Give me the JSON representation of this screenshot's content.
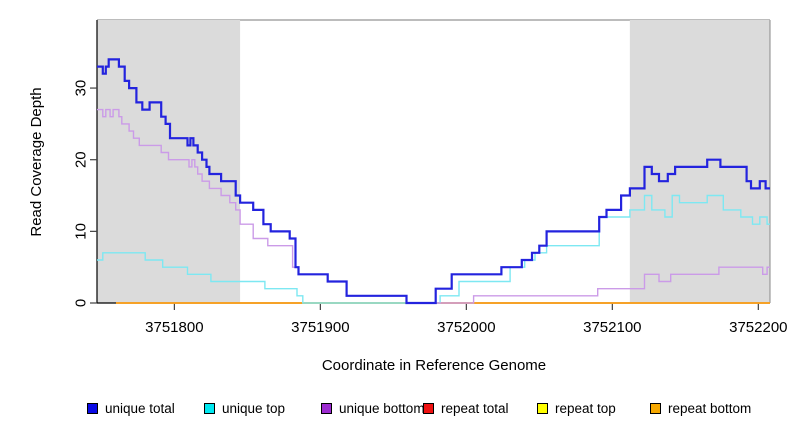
{
  "chart_data": {
    "type": "line",
    "subtype": "step",
    "title": "",
    "xlabel": "Coordinate in Reference Genome",
    "ylabel": "Read Coverage Depth",
    "x_domain": [
      3751747,
      3752208
    ],
    "y_domain": [
      0,
      39.5
    ],
    "x_ticks": [
      3751800,
      3751900,
      3752000,
      3752100,
      3752200
    ],
    "y_ticks": [
      0,
      10,
      20,
      30
    ],
    "grid": false,
    "legend_position": "bottom",
    "shaded_regions": [
      {
        "x0": 3751747,
        "x1": 3751845,
        "color": "#DBDBDB"
      },
      {
        "x0": 3752112,
        "x1": 3752208,
        "color": "#DBDBDB"
      }
    ],
    "x_end": 3752208,
    "draw_order": [
      3,
      4,
      5,
      1,
      2,
      0
    ],
    "series": [
      {
        "name": "unique total",
        "line_color": "#2323DE",
        "legend_color": "#0A0AE6",
        "line_width": 2.2,
        "steps": [
          [
            3751747,
            33
          ],
          [
            3751751,
            32
          ],
          [
            3751753,
            33
          ],
          [
            3751755,
            34
          ],
          [
            3751762,
            33
          ],
          [
            3751766,
            31
          ],
          [
            3751769,
            30
          ],
          [
            3751774,
            28
          ],
          [
            3751778,
            27
          ],
          [
            3751783,
            28
          ],
          [
            3751791,
            26
          ],
          [
            3751794,
            25
          ],
          [
            3751797,
            23
          ],
          [
            3751809,
            22
          ],
          [
            3751811,
            23
          ],
          [
            3751813,
            22
          ],
          [
            3751816,
            21
          ],
          [
            3751819,
            20
          ],
          [
            3751822,
            19
          ],
          [
            3751824,
            18
          ],
          [
            3751832,
            17
          ],
          [
            3751842,
            15
          ],
          [
            3751845,
            14
          ],
          [
            3751854,
            13
          ],
          [
            3751861,
            11
          ],
          [
            3751866,
            10
          ],
          [
            3751879,
            9
          ],
          [
            3751883,
            5
          ],
          [
            3751885,
            4
          ],
          [
            3751905,
            3
          ],
          [
            3751918,
            1
          ],
          [
            3751959,
            0
          ],
          [
            3751979,
            2
          ],
          [
            3751990,
            4
          ],
          [
            3752024,
            5
          ],
          [
            3752038,
            6
          ],
          [
            3752045,
            7
          ],
          [
            3752050,
            8
          ],
          [
            3752055,
            10
          ],
          [
            3752091,
            12
          ],
          [
            3752096,
            13
          ],
          [
            3752106,
            15
          ],
          [
            3752112,
            16
          ],
          [
            3752122,
            19
          ],
          [
            3752127,
            18
          ],
          [
            3752132,
            17
          ],
          [
            3752138,
            18
          ],
          [
            3752143,
            19
          ],
          [
            3752165,
            20
          ],
          [
            3752174,
            19
          ],
          [
            3752192,
            17
          ],
          [
            3752195,
            16
          ],
          [
            3752201,
            17
          ],
          [
            3752205,
            16
          ]
        ]
      },
      {
        "name": "unique top",
        "line_color": "#7DE8F2",
        "legend_color": "#00E8F0",
        "line_width": 1.4,
        "steps": [
          [
            3751747,
            6
          ],
          [
            3751751,
            7
          ],
          [
            3751780,
            6
          ],
          [
            3751792,
            5
          ],
          [
            3751809,
            4
          ],
          [
            3751825,
            3
          ],
          [
            3751862,
            2
          ],
          [
            3751884,
            1
          ],
          [
            3751888,
            0
          ],
          [
            3751982,
            1
          ],
          [
            3751995,
            3
          ],
          [
            3752030,
            5
          ],
          [
            3752040,
            6
          ],
          [
            3752047,
            7
          ],
          [
            3752055,
            8
          ],
          [
            3752091,
            12
          ],
          [
            3752112,
            13
          ],
          [
            3752122,
            15
          ],
          [
            3752127,
            13
          ],
          [
            3752136,
            12
          ],
          [
            3752141,
            15
          ],
          [
            3752146,
            14
          ],
          [
            3752165,
            15
          ],
          [
            3752176,
            13
          ],
          [
            3752188,
            12
          ],
          [
            3752196,
            11
          ],
          [
            3752201,
            12
          ],
          [
            3752206,
            11
          ]
        ]
      },
      {
        "name": "unique bottom",
        "line_color": "#CB9BE8",
        "legend_color": "#9C2BD0",
        "line_width": 1.4,
        "steps": [
          [
            3751747,
            27
          ],
          [
            3751751,
            26
          ],
          [
            3751753,
            27
          ],
          [
            3751756,
            26
          ],
          [
            3751758,
            27
          ],
          [
            3751762,
            26
          ],
          [
            3751764,
            25
          ],
          [
            3751769,
            24
          ],
          [
            3751772,
            23
          ],
          [
            3751776,
            22
          ],
          [
            3751791,
            21
          ],
          [
            3751796,
            20
          ],
          [
            3751810,
            19
          ],
          [
            3751812,
            20
          ],
          [
            3751814,
            19
          ],
          [
            3751816,
            18
          ],
          [
            3751819,
            17
          ],
          [
            3751824,
            16
          ],
          [
            3751832,
            15
          ],
          [
            3751838,
            14
          ],
          [
            3751842,
            13
          ],
          [
            3751845,
            11
          ],
          [
            3751854,
            9
          ],
          [
            3751864,
            8
          ],
          [
            3751881,
            5
          ],
          [
            3751885,
            4
          ],
          [
            3751905,
            3
          ],
          [
            3751918,
            1
          ],
          [
            3751959,
            0
          ],
          [
            3752005,
            1
          ],
          [
            3752090,
            2
          ],
          [
            3752122,
            4
          ],
          [
            3752132,
            3
          ],
          [
            3752140,
            4
          ],
          [
            3752173,
            5
          ],
          [
            3752203,
            4
          ],
          [
            3752206,
            5
          ]
        ]
      },
      {
        "name": "repeat total",
        "line_color": "#D42A2A",
        "legend_color": "#EE1111",
        "line_width": 1.4,
        "steps": [
          [
            3751760,
            0
          ]
        ]
      },
      {
        "name": "repeat top",
        "line_color": "#F2F21E",
        "legend_color": "#FFFF00",
        "line_width": 1.4,
        "steps": [
          [
            3751760,
            0
          ]
        ]
      },
      {
        "name": "repeat bottom",
        "line_color": "#FF9D1E",
        "legend_color": "#F6A800",
        "line_width": 1.4,
        "steps": [
          [
            3751760,
            0
          ]
        ]
      }
    ]
  },
  "layout_text": {
    "note": ""
  }
}
